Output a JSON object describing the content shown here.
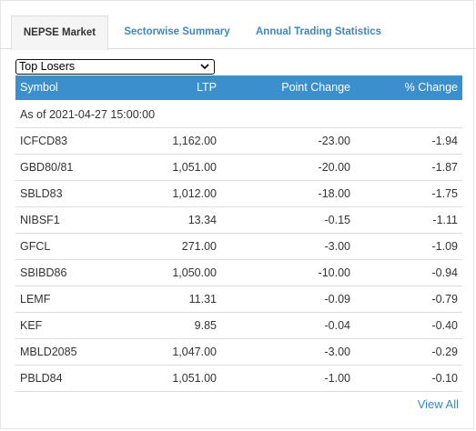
{
  "tabs": [
    {
      "label": "NEPSE Market"
    },
    {
      "label": "Sectorwise Summary"
    },
    {
      "label": "Annual Trading Statistics"
    }
  ],
  "filter": {
    "selected": "Top Losers"
  },
  "table": {
    "headers": {
      "symbol": "Symbol",
      "ltp": "LTP",
      "point_change": "Point Change",
      "pct_change": "% Change"
    },
    "as_of": "As of 2021-04-27 15:00:00",
    "rows": [
      {
        "symbol": "ICFCD83",
        "ltp": "1,162.00",
        "point_change": "-23.00",
        "pct_change": "-1.94"
      },
      {
        "symbol": "GBD80/81",
        "ltp": "1,051.00",
        "point_change": "-20.00",
        "pct_change": "-1.87"
      },
      {
        "symbol": "SBLD83",
        "ltp": "1,012.00",
        "point_change": "-18.00",
        "pct_change": "-1.75"
      },
      {
        "symbol": "NIBSF1",
        "ltp": "13.34",
        "point_change": "-0.15",
        "pct_change": "-1.11"
      },
      {
        "symbol": "GFCL",
        "ltp": "271.00",
        "point_change": "-3.00",
        "pct_change": "-1.09"
      },
      {
        "symbol": "SBIBD86",
        "ltp": "1,050.00",
        "point_change": "-10.00",
        "pct_change": "-0.94"
      },
      {
        "symbol": "LEMF",
        "ltp": "11.31",
        "point_change": "-0.09",
        "pct_change": "-0.79"
      },
      {
        "symbol": "KEF",
        "ltp": "9.85",
        "point_change": "-0.04",
        "pct_change": "-0.40"
      },
      {
        "symbol": "MBLD2085",
        "ltp": "1,047.00",
        "point_change": "-3.00",
        "pct_change": "-0.29"
      },
      {
        "symbol": "PBLD84",
        "ltp": "1,051.00",
        "point_change": "-1.00",
        "pct_change": "-0.10"
      }
    ]
  },
  "footer": {
    "view_all": "View All"
  },
  "colors": {
    "header_bg": "#3b8fcc",
    "link": "#3a87c8",
    "active_tab_bg": "#f5f5f5"
  },
  "icons": {
    "select": "chevron-down-icon"
  }
}
